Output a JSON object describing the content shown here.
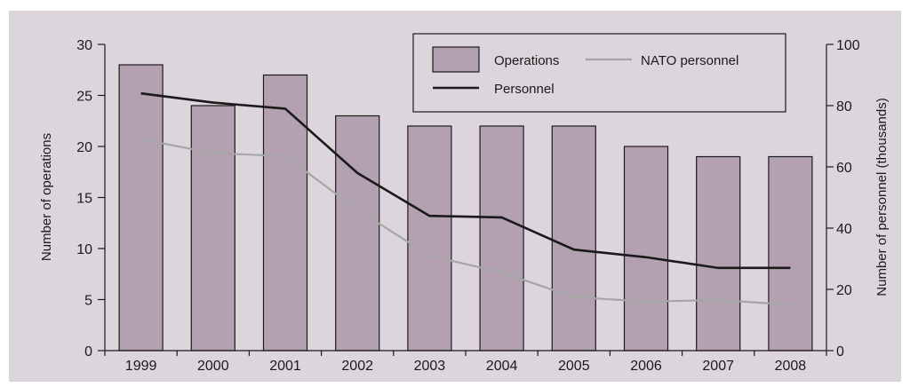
{
  "colors": {
    "panel_background": "#ddd5dc",
    "bar_fill": "#b3a1b2",
    "bar_stroke": "#1a1a1a",
    "personnel_line": "#1a1a1a",
    "nato_line": "#a6a6a6",
    "axis": "#1a1a1a",
    "legend_background": "#ddd5dc"
  },
  "chart_data": {
    "type": "bar",
    "categories": [
      "1999",
      "2000",
      "2001",
      "2002",
      "2003",
      "2004",
      "2005",
      "2006",
      "2007",
      "2008"
    ],
    "bars": {
      "name": "Operations",
      "axis": "left",
      "values": [
        28,
        24,
        27,
        23,
        22,
        22,
        22,
        20,
        19,
        19
      ]
    },
    "lines": [
      {
        "name": "Personnel",
        "axis": "right",
        "values": [
          84,
          81,
          79,
          58,
          44,
          43.5,
          33,
          30.5,
          27,
          27
        ]
      },
      {
        "name": "NATO personnel",
        "axis": "right",
        "values": [
          69,
          64.5,
          63.5,
          46,
          31,
          25.5,
          17.5,
          16,
          16.5,
          15
        ]
      }
    ],
    "ylabel": "Number of operations",
    "ylim": [
      0,
      30
    ],
    "yticks": [
      "0",
      "5",
      "10",
      "15",
      "20",
      "25",
      "30"
    ],
    "y2label": "Number of personnel (thousands)",
    "y2lim": [
      0,
      100
    ],
    "y2ticks": [
      "0",
      "20",
      "40",
      "60",
      "80",
      "100"
    ],
    "grid": false,
    "legend_position": "top-right"
  }
}
